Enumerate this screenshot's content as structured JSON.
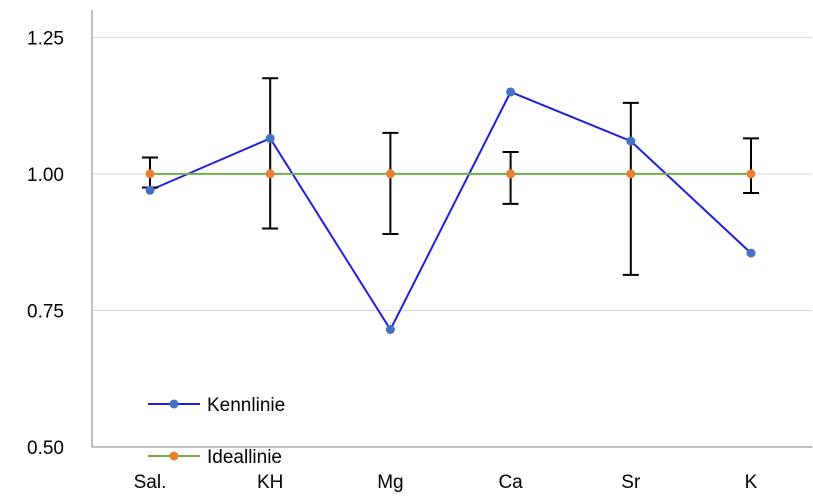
{
  "chart_data": {
    "type": "line",
    "title": "",
    "xlabel": "",
    "ylabel": "",
    "categories": [
      "Sal.",
      "KH",
      "Mg",
      "Ca",
      "Sr",
      "K"
    ],
    "ylim": [
      0.5,
      1.3
    ],
    "yticks": [
      0.5,
      0.75,
      1.0,
      1.25
    ],
    "ytick_labels": [
      "0.50",
      "0.75",
      "1.00",
      "1.25"
    ],
    "grid": true,
    "legend_position": "bottom-left",
    "series": [
      {
        "name": "Kennlinie",
        "color": "#1f1fe0",
        "marker_color": "#4472c4",
        "values": [
          0.97,
          1.065,
          0.715,
          1.15,
          1.06,
          0.855
        ]
      },
      {
        "name": "Ideallinie",
        "color": "#70ad47",
        "marker_color": "#ed7d31",
        "values": [
          1.0,
          1.0,
          1.0,
          1.0,
          1.0,
          1.0
        ],
        "error_bars": [
          [
            0.975,
            1.03
          ],
          [
            0.9,
            1.175
          ],
          [
            0.89,
            1.075
          ],
          [
            0.945,
            1.04
          ],
          [
            0.815,
            1.13
          ],
          [
            0.965,
            1.065
          ]
        ],
        "error_color": "#000000"
      }
    ]
  }
}
